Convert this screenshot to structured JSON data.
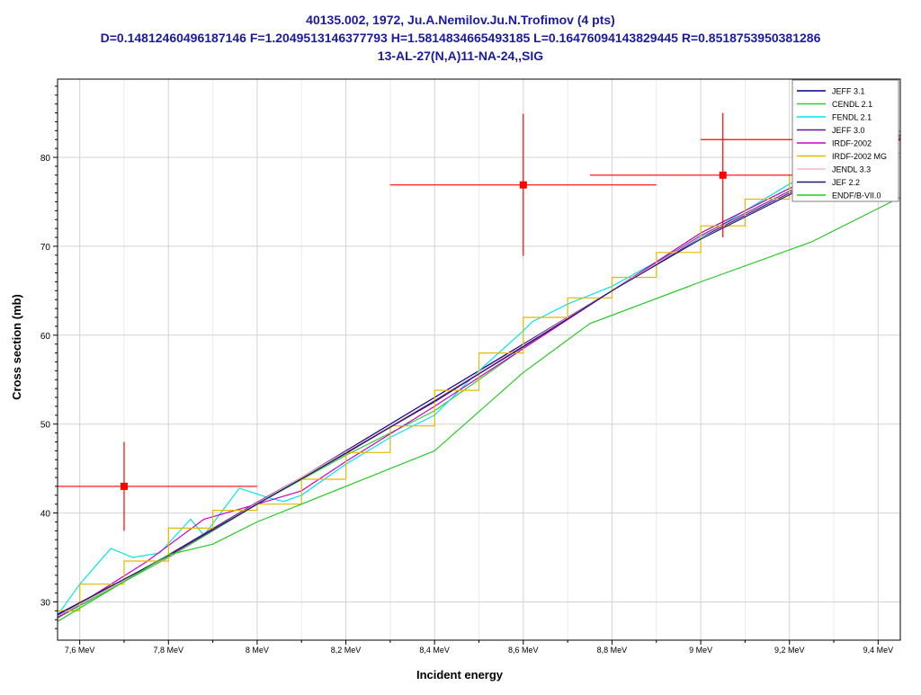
{
  "chart_data": {
    "type": "line",
    "title_lines": [
      "40135.002, 1972, Ju.A.Nemilov.Ju.N.Trofimov (4 pts)",
      "D=0.14812460496187146 F=1.2049513146377793 H=1.5814834665493185 L=0.16476094143829445 R=0.8518753950381286",
      "13-AL-27(N,A)11-NA-24,,SIG"
    ],
    "xlabel": "Incident energy",
    "ylabel": "Cross section (mb)",
    "xlim": [
      7.55,
      9.45
    ],
    "ylim": [
      25.7,
      88.8
    ],
    "x_ticks": [
      {
        "v": 7.6,
        "label": "7,6 MeV"
      },
      {
        "v": 7.8,
        "label": "7,8 MeV"
      },
      {
        "v": 8.0,
        "label": "8 MeV"
      },
      {
        "v": 8.2,
        "label": "8,2 MeV"
      },
      {
        "v": 8.4,
        "label": "8,4 MeV"
      },
      {
        "v": 8.6,
        "label": "8,6 MeV"
      },
      {
        "v": 8.8,
        "label": "8,8 MeV"
      },
      {
        "v": 9.0,
        "label": "9 MeV"
      },
      {
        "v": 9.2,
        "label": "9,2 MeV"
      },
      {
        "v": 9.4,
        "label": "9,4 MeV"
      }
    ],
    "y_ticks": [
      {
        "v": 30,
        "label": "30"
      },
      {
        "v": 40,
        "label": "40"
      },
      {
        "v": 50,
        "label": "50"
      },
      {
        "v": 60,
        "label": "60"
      },
      {
        "v": 70,
        "label": "70"
      },
      {
        "v": 80,
        "label": "80"
      }
    ],
    "grid": true,
    "legend_position": "top-right",
    "experimental_points": [
      {
        "x": 7.7,
        "y": 43.0,
        "xerr_low": 0.15,
        "xerr_high": 0.3,
        "yerr": 5.0
      },
      {
        "x": 8.6,
        "y": 76.9,
        "xerr_low": 0.3,
        "xerr_high": 0.3,
        "yerr": 8.0
      },
      {
        "x": 9.05,
        "y": 78.0,
        "xerr_low": 0.3,
        "xerr_high": 0.3,
        "yerr": 7.0
      },
      {
        "x": 9.3,
        "y": 82.0,
        "xerr_low": 0.3,
        "xerr_high": 0.3,
        "yerr": 0
      }
    ],
    "experimental_color": "#ff0000",
    "series": [
      {
        "name": "JEFF 3.1",
        "color": "#00008b",
        "step": false,
        "x": [
          7.55,
          7.8,
          8.0,
          8.2,
          8.4,
          8.6,
          8.8,
          9.0,
          9.2,
          9.45
        ],
        "y": [
          28.5,
          35.0,
          41.0,
          47.0,
          53.0,
          59.0,
          65.0,
          71.0,
          76.0,
          82.5
        ]
      },
      {
        "name": "CENDL 2.1",
        "color": "#33cc33",
        "step": false,
        "x": [
          7.55,
          7.8,
          8.0,
          8.2,
          8.4,
          8.6,
          8.8,
          9.0,
          9.2,
          9.45
        ],
        "y": [
          28.2,
          35.0,
          41.0,
          46.5,
          51.5,
          58.5,
          65.0,
          71.5,
          76.5,
          82.0
        ]
      },
      {
        "name": "FENDL 2.1",
        "color": "#00e5ee",
        "step": false,
        "x": [
          7.55,
          7.6,
          7.67,
          7.72,
          7.78,
          7.85,
          7.88,
          7.96,
          8.02,
          8.06,
          8.1,
          8.2,
          8.3,
          8.4,
          8.5,
          8.6,
          8.62,
          8.7,
          8.8,
          9.0,
          9.2,
          9.45
        ],
        "y": [
          28.5,
          32.0,
          36.0,
          35.0,
          35.5,
          39.3,
          37.5,
          42.8,
          41.8,
          41.3,
          42.0,
          45.5,
          48.5,
          51.0,
          56.0,
          60.5,
          61.5,
          63.5,
          65.5,
          71.0,
          77.0,
          83.0
        ]
      },
      {
        "name": "JEFF 3.0",
        "color": "#5c1a8e",
        "step": false,
        "x": [
          7.55,
          7.8,
          8.0,
          8.2,
          8.4,
          8.6,
          8.8,
          9.0,
          9.2,
          9.45
        ],
        "y": [
          28.3,
          35.3,
          41.2,
          46.8,
          52.5,
          58.8,
          65.0,
          71.2,
          76.2,
          82.2
        ]
      },
      {
        "name": "IRDF-2002",
        "color": "#cc00cc",
        "step": false,
        "x": [
          7.55,
          7.75,
          7.88,
          8.0,
          8.1,
          8.2,
          8.4,
          8.6,
          8.8,
          9.0,
          9.2,
          9.45
        ],
        "y": [
          28.2,
          34.5,
          39.3,
          41.0,
          42.5,
          45.8,
          52.0,
          58.5,
          65.0,
          71.5,
          76.5,
          82.5
        ]
      },
      {
        "name": "IRDF-2002 MG",
        "color": "#e6b800",
        "step": true,
        "x": [
          7.55,
          7.6,
          7.7,
          7.8,
          7.9,
          8.0,
          8.1,
          8.2,
          8.3,
          8.4,
          8.5,
          8.6,
          8.7,
          8.8,
          8.9,
          9.0,
          9.1,
          9.2,
          9.3,
          9.45
        ],
        "y": [
          29.0,
          32.0,
          34.6,
          38.3,
          40.3,
          41.0,
          43.8,
          46.8,
          49.8,
          53.8,
          58.0,
          62.0,
          64.2,
          66.5,
          69.3,
          72.3,
          75.3,
          78.0,
          80.5,
          80.5
        ]
      },
      {
        "name": "JENDL 3.3",
        "color": "#ffb6c1",
        "step": false,
        "x": [
          7.55,
          7.8,
          8.0,
          8.2,
          8.4,
          8.6,
          8.8,
          9.0,
          9.2,
          9.45
        ],
        "y": [
          28.4,
          35.1,
          41.1,
          46.9,
          52.7,
          58.9,
          65.0,
          71.1,
          76.1,
          82.3
        ]
      },
      {
        "name": "JEF 2.2",
        "color": "#191970",
        "step": false,
        "x": [
          7.55,
          7.8,
          8.0,
          8.2,
          8.4,
          8.6,
          8.8,
          9.0,
          9.2,
          9.45
        ],
        "y": [
          28.6,
          35.2,
          41.0,
          46.7,
          52.6,
          58.7,
          65.0,
          70.8,
          75.8,
          82.0
        ]
      },
      {
        "name": "ENDF/B-VII.0",
        "color": "#22cc22",
        "step": false,
        "x": [
          7.55,
          7.8,
          7.9,
          8.0,
          8.2,
          8.4,
          8.6,
          8.75,
          9.0,
          9.25,
          9.45
        ],
        "y": [
          27.8,
          35.3,
          36.5,
          39.0,
          43.0,
          47.0,
          55.8,
          61.3,
          66.0,
          70.5,
          75.5
        ]
      }
    ]
  }
}
